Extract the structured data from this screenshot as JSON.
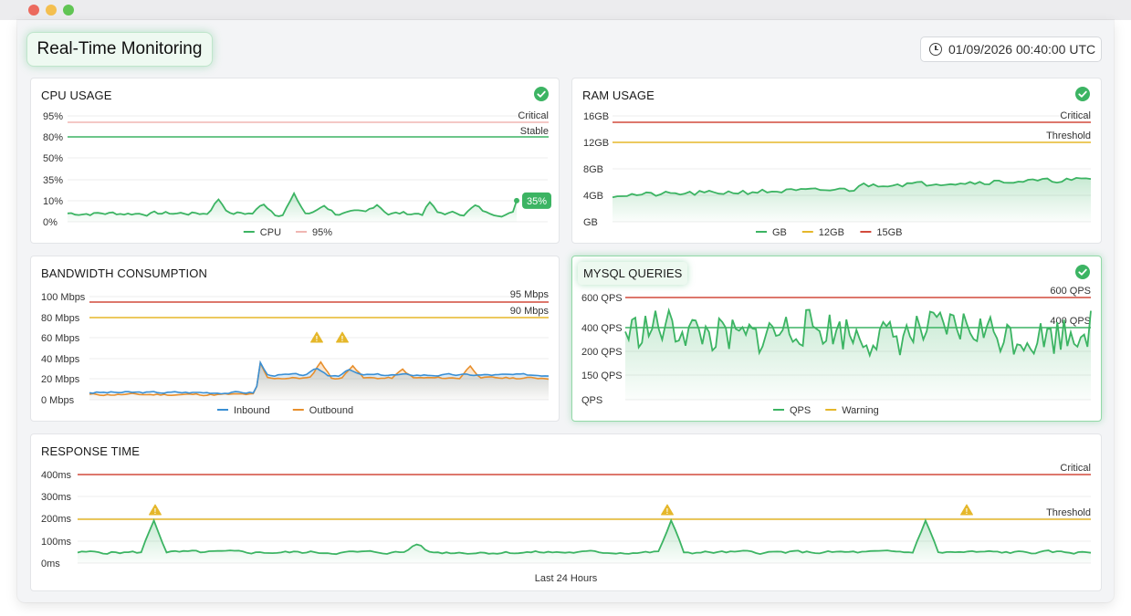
{
  "header": {
    "title": "Real-Time Monitoring",
    "timestamp": "01/09/2026 00:40:00 UTC"
  },
  "colors": {
    "green": "#3cb463",
    "red": "#d24a3c",
    "yellow": "#e5b72a",
    "blue": "#3a8fd4",
    "orange": "#e88f2c",
    "pink": "#f0b6b3"
  },
  "panels": {
    "cpu": {
      "title": "CPU USAGE",
      "y_ticks": [
        "95%",
        "80%",
        "50%",
        "35%",
        "10%",
        "0%"
      ],
      "lines": [
        {
          "label": "Critical",
          "color": "pink"
        },
        {
          "label": "Stable",
          "color": "green"
        }
      ],
      "badge": "35%",
      "legend": [
        {
          "label": "CPU",
          "color": "green"
        },
        {
          "label": "95%",
          "color": "pink"
        }
      ]
    },
    "ram": {
      "title": "RAM USAGE",
      "y_ticks": [
        "16GB",
        "12GB",
        "8GB",
        "4GB",
        "GB"
      ],
      "lines": [
        {
          "label": "Critical",
          "color": "red"
        },
        {
          "label": "Threshold",
          "color": "yellow"
        }
      ],
      "legend": [
        {
          "label": "GB",
          "color": "green"
        },
        {
          "label": "12GB",
          "color": "yellow"
        },
        {
          "label": "15GB",
          "color": "red"
        }
      ]
    },
    "bandwidth": {
      "title": "BANDWIDTH CONSUMPTION",
      "y_ticks": [
        "100 Mbps",
        "80 Mbps",
        "60 Mbps",
        "40 Mbps",
        "20 Mbps",
        "0 Mbps"
      ],
      "lines": [
        {
          "label": "95 Mbps",
          "color": "red"
        },
        {
          "label": "90 Mbps",
          "color": "yellow"
        }
      ],
      "legend": [
        {
          "label": "Inbound",
          "color": "blue"
        },
        {
          "label": "Outbound",
          "color": "orange"
        }
      ]
    },
    "mysql": {
      "title": "MYSQL QUERIES",
      "y_ticks": [
        "600 QPS",
        "400 QPS",
        "200 QPS",
        "150 QPS",
        "QPS"
      ],
      "lines": [
        {
          "label": "600 QPS",
          "color": "red"
        },
        {
          "label": "400 QPS",
          "color": "green"
        }
      ],
      "legend": [
        {
          "label": "QPS",
          "color": "green"
        },
        {
          "label": "Warning",
          "color": "yellow"
        }
      ]
    },
    "response": {
      "title": "RESPONSE TIME",
      "y_ticks": [
        "400ms",
        "300ms",
        "200ms",
        "100ms",
        "0ms"
      ],
      "lines": [
        {
          "label": "Critical",
          "color": "red"
        },
        {
          "label": "Threshold",
          "color": "yellow"
        }
      ],
      "x_label": "Last 24 Hours"
    }
  }
}
